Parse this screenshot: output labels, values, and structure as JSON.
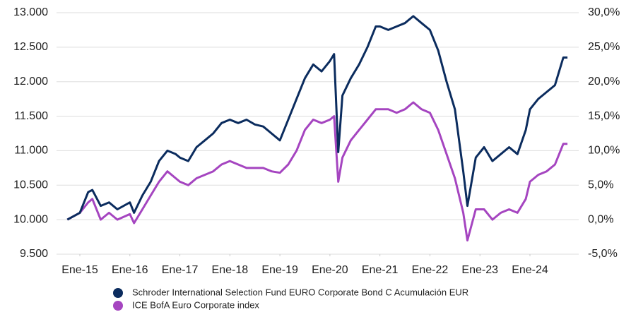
{
  "chart_data": {
    "type": "line",
    "x": [
      "2014-10",
      "2015-01",
      "2015-03",
      "2015-04",
      "2015-06",
      "2015-08",
      "2015-10",
      "2016-01",
      "2016-02",
      "2016-04",
      "2016-06",
      "2016-08",
      "2016-10",
      "2016-12",
      "2017-01",
      "2017-03",
      "2017-05",
      "2017-07",
      "2017-09",
      "2017-11",
      "2018-01",
      "2018-03",
      "2018-05",
      "2018-07",
      "2018-09",
      "2018-11",
      "2019-01",
      "2019-03",
      "2019-05",
      "2019-07",
      "2019-09",
      "2019-11",
      "2020-01",
      "2020-02",
      "2020-03",
      "2020-04",
      "2020-06",
      "2020-08",
      "2020-10",
      "2020-12",
      "2021-01",
      "2021-03",
      "2021-05",
      "2021-07",
      "2021-09",
      "2021-11",
      "2022-01",
      "2022-03",
      "2022-05",
      "2022-07",
      "2022-09",
      "2022-10",
      "2022-12",
      "2023-02",
      "2023-04",
      "2023-06",
      "2023-08",
      "2023-10",
      "2023-12",
      "2024-01",
      "2024-03",
      "2024-05",
      "2024-07",
      "2024-09",
      "2024-10"
    ],
    "series": [
      {
        "name": "Schroder International Selection Fund EURO Corporate Bond C Acumulación EUR",
        "color": "#0b2c5e",
        "axis": "y",
        "values": [
          10000,
          10100,
          10400,
          10430,
          10200,
          10250,
          10150,
          10250,
          10100,
          10350,
          10550,
          10850,
          11000,
          10950,
          10900,
          10850,
          11050,
          11150,
          11250,
          11400,
          11450,
          11400,
          11450,
          11380,
          11350,
          11250,
          11150,
          11450,
          11750,
          12050,
          12250,
          12150,
          12300,
          12400,
          10980,
          11800,
          12050,
          12250,
          12500,
          12800,
          12800,
          12750,
          12800,
          12850,
          12950,
          12850,
          12750,
          12450,
          12000,
          11600,
          10700,
          10200,
          10900,
          11050,
          10850,
          10950,
          11050,
          10950,
          11300,
          11600,
          11750,
          11850,
          11950,
          12350,
          12350
        ]
      },
      {
        "name": "ICE BofA Euro Corporate index",
        "color": "#a545c0",
        "axis": "y2",
        "values": [
          0,
          1,
          2.5,
          3,
          0,
          1,
          0,
          0.8,
          -0.5,
          1.5,
          3.5,
          5.5,
          7,
          6,
          5.5,
          5,
          6,
          6.5,
          7,
          8,
          8.5,
          8,
          7.5,
          7.5,
          7.5,
          7,
          6.8,
          8,
          10,
          13,
          14.5,
          14,
          14.5,
          15,
          5.5,
          9,
          11.5,
          13,
          14.5,
          16,
          16,
          16,
          15.5,
          16,
          17,
          16,
          15.5,
          13,
          9.5,
          6,
          1,
          -3,
          1.5,
          1.5,
          0,
          1,
          1.5,
          1,
          3,
          5.5,
          6.5,
          7,
          8,
          11,
          11
        ]
      }
    ],
    "xticks": [
      {
        "value": "2015-01",
        "label": "Ene-15"
      },
      {
        "value": "2016-01",
        "label": "Ene-16"
      },
      {
        "value": "2017-01",
        "label": "Ene-17"
      },
      {
        "value": "2018-01",
        "label": "Ene-18"
      },
      {
        "value": "2019-01",
        "label": "Ene-19"
      },
      {
        "value": "2020-01",
        "label": "Ene-20"
      },
      {
        "value": "2021-01",
        "label": "Ene-21"
      },
      {
        "value": "2022-01",
        "label": "Ene-22"
      },
      {
        "value": "2023-01",
        "label": "Ene-23"
      },
      {
        "value": "2024-01",
        "label": "Ene-24"
      }
    ],
    "ylim": [
      9500,
      13000
    ],
    "yticks": [
      {
        "value": 9500,
        "label": "9.500"
      },
      {
        "value": 10000,
        "label": "10.000"
      },
      {
        "value": 10500,
        "label": "10.500"
      },
      {
        "value": 11000,
        "label": "11.000"
      },
      {
        "value": 11500,
        "label": "11.500"
      },
      {
        "value": 12000,
        "label": "12.000"
      },
      {
        "value": 12500,
        "label": "12.500"
      },
      {
        "value": 13000,
        "label": "13.000"
      }
    ],
    "y2lim": [
      -5,
      30
    ],
    "y2ticks": [
      {
        "value": -5,
        "label": "-5,0%"
      },
      {
        "value": 0,
        "label": "0,0%"
      },
      {
        "value": 5,
        "label": "5,0%"
      },
      {
        "value": 10,
        "label": "10,0%"
      },
      {
        "value": 15,
        "label": "15,0%"
      },
      {
        "value": 20,
        "label": "20,0%"
      },
      {
        "value": 25,
        "label": "25,0%"
      },
      {
        "value": 30,
        "label": "30,0%"
      }
    ],
    "grid": true
  }
}
